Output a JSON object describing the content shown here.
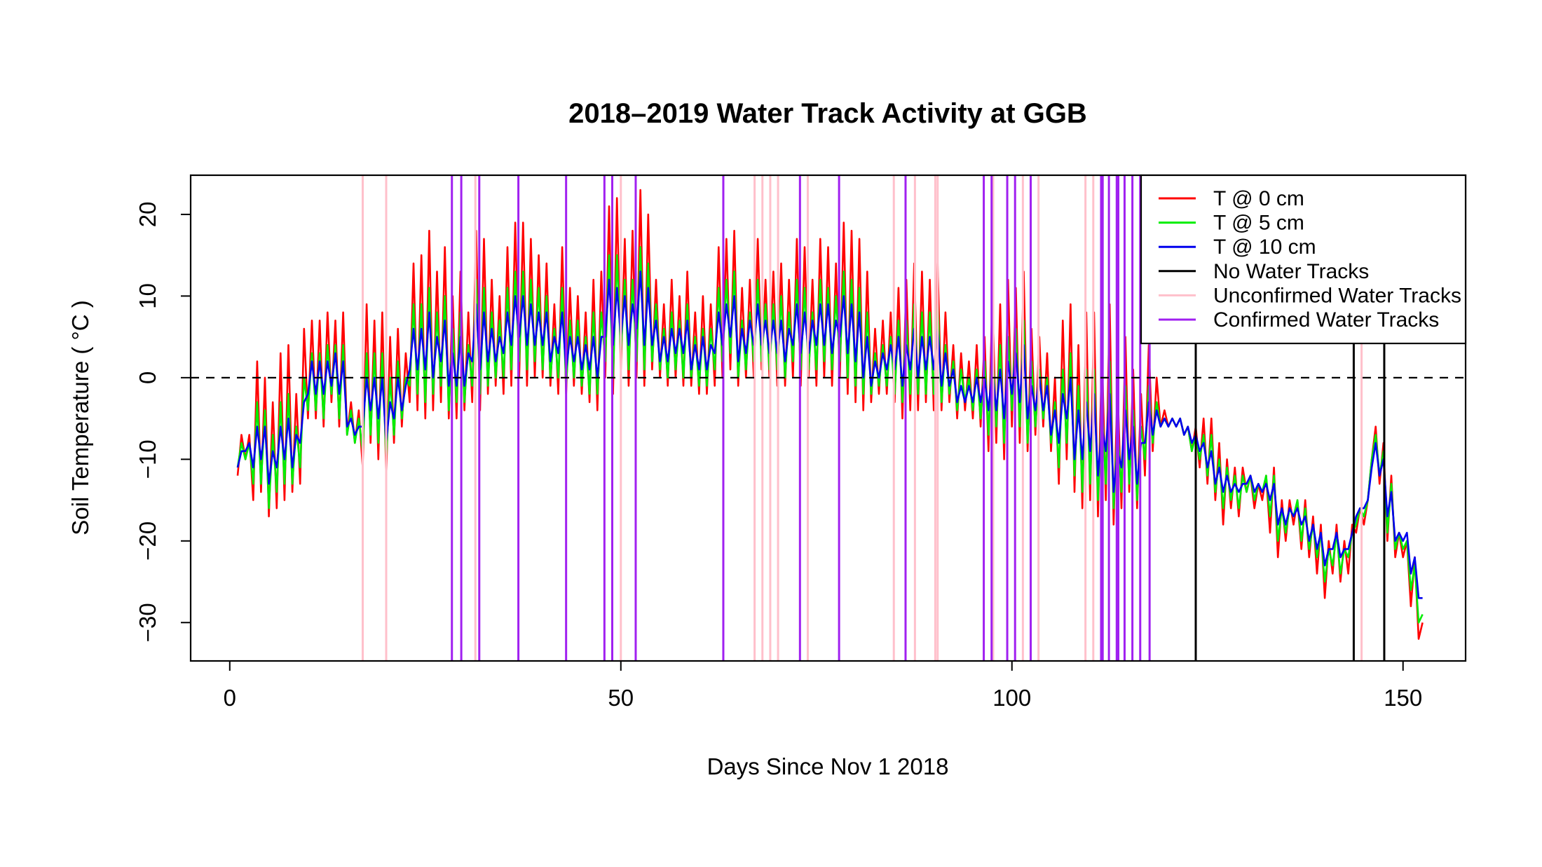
{
  "chart_data": {
    "type": "line",
    "title": "2018–2019 Water Track Activity at GGB",
    "xlabel": "Days Since Nov 1  2018",
    "ylabel": "Soil Temperature ( °C )",
    "xlim": [
      -5,
      158
    ],
    "ylim": [
      -34.7,
      24.8
    ],
    "x_ticks": [
      "0",
      "50",
      "100",
      "150"
    ],
    "y_ticks": [
      "-30",
      "-20",
      "-10",
      "0",
      "10",
      "20"
    ],
    "grid": false,
    "reference_line": {
      "y": 0,
      "style": "dashed",
      "color": "#000000"
    },
    "legend_position": "top-right",
    "legend": [
      {
        "label": "T @ 0 cm",
        "color": "#FF0000"
      },
      {
        "label": "T @ 5 cm",
        "color": "#00EE00"
      },
      {
        "label": "T @ 10 cm",
        "color": "#0000EE"
      },
      {
        "label": "No Water Tracks",
        "color": "#000000"
      },
      {
        "label": "Unconfirmed Water Tracks",
        "color": "#FFC0CB"
      },
      {
        "label": "Confirmed Water Tracks",
        "color": "#A020F0"
      }
    ],
    "days": [
      1,
      2,
      3,
      4,
      5,
      6,
      7,
      8,
      9,
      10,
      11,
      12,
      13,
      14,
      15,
      16,
      17,
      18,
      19,
      20,
      21,
      22,
      23,
      24,
      25,
      26,
      27,
      28,
      29,
      30,
      31,
      32,
      33,
      34,
      35,
      36,
      37,
      38,
      39,
      40,
      41,
      42,
      43,
      44,
      45,
      46,
      47,
      48,
      49,
      50,
      51,
      52,
      53,
      54,
      55,
      56,
      57,
      58,
      59,
      60,
      61,
      62,
      63,
      64,
      65,
      66,
      67,
      68,
      69,
      70,
      71,
      72,
      73,
      74,
      75,
      76,
      77,
      78,
      79,
      80,
      81,
      82,
      83,
      84,
      85,
      86,
      87,
      88,
      89,
      90,
      91,
      92,
      93,
      94,
      95,
      96,
      97,
      98,
      99,
      100,
      101,
      102,
      103,
      104,
      105,
      106,
      107,
      108,
      109,
      110,
      111,
      112,
      113,
      114,
      115,
      116,
      117,
      118,
      119,
      120,
      121,
      122,
      123,
      124,
      125,
      126,
      127,
      128,
      129,
      130,
      131,
      132,
      133,
      134,
      135,
      136,
      137,
      138,
      139,
      140,
      141,
      142,
      143,
      144,
      145,
      146,
      147,
      148,
      149,
      150,
      151,
      152
    ],
    "series": [
      {
        "name": "T @ 0 cm",
        "color": "#FF0000",
        "daily_min": [
          -12,
          -10,
          -15,
          -14,
          -17,
          -16,
          -15,
          -14,
          -13,
          -5,
          -5,
          -6,
          -3,
          -6,
          -7,
          -8,
          -11,
          -8,
          -10,
          -12,
          -8,
          -6,
          -3,
          -4,
          -5,
          -4,
          -3,
          -5,
          -5,
          -4,
          -3,
          -4,
          -2,
          -1,
          -2,
          -1,
          0,
          -1,
          0,
          0,
          -1,
          -2,
          -2,
          -1,
          -2,
          -3,
          -4,
          0,
          -2,
          1,
          -1,
          0,
          -1,
          1,
          0,
          -1,
          0,
          -1,
          -1,
          -2,
          -2,
          -1,
          0,
          1,
          -1,
          0,
          0,
          1,
          0,
          -1,
          -1,
          0,
          -1,
          0,
          -1,
          0,
          -1,
          0,
          -2,
          -3,
          -4,
          -3,
          -2,
          -2,
          -3,
          -5,
          -4,
          -4,
          -3,
          -4,
          -4,
          -3,
          -5,
          -4,
          -5,
          -6,
          -9,
          -8,
          -10,
          -6,
          -8,
          -9,
          -7,
          -6,
          -9,
          -13,
          -10,
          -14,
          -16,
          -15,
          -17,
          -15,
          -18,
          -16,
          -14,
          -16,
          -12,
          -9,
          -6,
          -6,
          -6,
          -7,
          -9,
          -11,
          -13,
          -15,
          -18,
          -16,
          -17,
          -14,
          -16,
          -15,
          -19,
          -22,
          -20,
          -18,
          -21,
          -22,
          -24,
          -27,
          -24,
          -25,
          -24,
          -19,
          -18,
          -10,
          -13,
          -20,
          -22,
          -22,
          -28,
          -32
        ],
        "daily_max": [
          -7,
          -7,
          2,
          0,
          -3,
          3,
          4,
          -2,
          6,
          7,
          7,
          8,
          7,
          8,
          -3,
          -4,
          9,
          7,
          8,
          5,
          6,
          3,
          14,
          15,
          18,
          13,
          16,
          10,
          13,
          8,
          18,
          17,
          12,
          10,
          16,
          19,
          19,
          17,
          15,
          14,
          9,
          16,
          11,
          10,
          8,
          12,
          13,
          21,
          22,
          17,
          18,
          23,
          20,
          12,
          9,
          12,
          10,
          13,
          8,
          10,
          9,
          16,
          17,
          18,
          11,
          12,
          17,
          12,
          13,
          14,
          12,
          17,
          16,
          12,
          17,
          16,
          14,
          19,
          18,
          17,
          13,
          6,
          7,
          8,
          11,
          12,
          14,
          13,
          12,
          14,
          8,
          4,
          3,
          2,
          4,
          5,
          10,
          9,
          12,
          11,
          13,
          6,
          5,
          3,
          0,
          7,
          9,
          4,
          8,
          8,
          3,
          9,
          -1,
          5,
          1,
          -2,
          4,
          0,
          -4,
          -5,
          -5,
          -6,
          -6,
          -5,
          -5,
          -8,
          -10,
          -11,
          -11,
          -12,
          -13,
          -12,
          -11,
          -15,
          -15,
          -15,
          -15,
          -17,
          -18,
          -20,
          -18,
          -20,
          -18,
          -16,
          -15,
          -6,
          -8,
          -12,
          -19,
          -20,
          -22,
          -30
        ]
      },
      {
        "name": "T @ 5 cm",
        "color": "#00EE00",
        "daily_min": [
          -11,
          -10,
          -13,
          -13,
          -16,
          -14,
          -13,
          -13,
          -11,
          -4,
          -4,
          -5,
          -2,
          -5,
          -7,
          -8,
          -9,
          -7,
          -8,
          -10,
          -7,
          -5,
          -1,
          -2,
          -3,
          -2,
          -1,
          -4,
          -3,
          -3,
          -1,
          -2,
          -1,
          0,
          0,
          1,
          2,
          1,
          2,
          1,
          0,
          0,
          -1,
          0,
          -1,
          -2,
          -2,
          2,
          0,
          3,
          1,
          2,
          1,
          2,
          1,
          0,
          1,
          0,
          0,
          -1,
          -1,
          1,
          2,
          3,
          0,
          1,
          2,
          2,
          1,
          1,
          0,
          2,
          1,
          1,
          1,
          2,
          1,
          2,
          0,
          -1,
          -2,
          -2,
          -1,
          -1,
          -2,
          -3,
          -2,
          -2,
          -2,
          -2,
          -3,
          -2,
          -4,
          -3,
          -4,
          -5,
          -7,
          -6,
          -8,
          -4,
          -6,
          -8,
          -6,
          -5,
          -8,
          -11,
          -8,
          -12,
          -14,
          -13,
          -15,
          -13,
          -16,
          -14,
          -13,
          -15,
          -10,
          -8,
          -6,
          -6,
          -6,
          -7,
          -9,
          -10,
          -12,
          -14,
          -16,
          -15,
          -16,
          -14,
          -15,
          -14,
          -17,
          -20,
          -19,
          -17,
          -20,
          -21,
          -22,
          -25,
          -23,
          -24,
          -22,
          -18,
          -17,
          -10,
          -12,
          -19,
          -21,
          -21,
          -26,
          -30
        ],
        "daily_max": [
          -8,
          -8,
          -3,
          -4,
          -7,
          -3,
          -2,
          -6,
          0,
          3,
          3,
          4,
          4,
          4,
          -4,
          -5,
          3,
          3,
          3,
          0,
          2,
          0,
          9,
          9,
          11,
          8,
          10,
          6,
          8,
          4,
          12,
          11,
          8,
          7,
          11,
          13,
          13,
          12,
          11,
          10,
          6,
          11,
          7,
          7,
          5,
          8,
          8,
          15,
          15,
          12,
          12,
          16,
          14,
          9,
          6,
          8,
          7,
          9,
          5,
          6,
          6,
          11,
          12,
          13,
          7,
          8,
          12,
          9,
          9,
          10,
          8,
          12,
          11,
          8,
          12,
          11,
          10,
          13,
          12,
          11,
          8,
          3,
          4,
          5,
          7,
          7,
          9,
          8,
          8,
          9,
          4,
          2,
          1,
          0,
          1,
          2,
          4,
          4,
          5,
          6,
          7,
          2,
          1,
          0,
          -3,
          1,
          3,
          -1,
          1,
          1,
          -3,
          2,
          -6,
          -1,
          -4,
          -6,
          -1,
          -3,
          -5,
          -5,
          -5,
          -6,
          -7,
          -7,
          -7,
          -10,
          -11,
          -12,
          -12,
          -12,
          -13,
          -12,
          -12,
          -16,
          -16,
          -15,
          -16,
          -18,
          -19,
          -21,
          -19,
          -21,
          -19,
          -16,
          -15,
          -7,
          -9,
          -13,
          -19,
          -20,
          -23,
          -29
        ]
      },
      {
        "name": "T @ 10 cm",
        "color": "#0000EE",
        "daily_min": [
          -11,
          -9,
          -11,
          -10,
          -13,
          -11,
          -10,
          -11,
          -8,
          -2,
          -2,
          -2,
          -1,
          -2,
          -6,
          -7,
          -6,
          -4,
          -5,
          -8,
          -5,
          -4,
          1,
          1,
          1,
          0,
          2,
          -1,
          -1,
          -1,
          2,
          1,
          2,
          2,
          3,
          4,
          5,
          4,
          4,
          4,
          2,
          3,
          1,
          2,
          1,
          1,
          0,
          5,
          4,
          5,
          4,
          6,
          4,
          4,
          2,
          2,
          3,
          3,
          1,
          1,
          1,
          3,
          4,
          5,
          2,
          3,
          4,
          4,
          3,
          3,
          2,
          4,
          3,
          3,
          4,
          4,
          3,
          5,
          3,
          2,
          0,
          -1,
          0,
          1,
          1,
          -1,
          1,
          0,
          1,
          1,
          -1,
          -1,
          -3,
          -3,
          -3,
          -3,
          -4,
          -4,
          -5,
          -2,
          -3,
          -5,
          -4,
          -4,
          -7,
          -8,
          -5,
          -10,
          -10,
          -9,
          -12,
          -9,
          -14,
          -11,
          -10,
          -13,
          -8,
          -7,
          -6,
          -6,
          -6,
          -7,
          -8,
          -9,
          -11,
          -13,
          -14,
          -14,
          -14,
          -13,
          -14,
          -14,
          -15,
          -18,
          -18,
          -17,
          -18,
          -20,
          -21,
          -23,
          -21,
          -22,
          -21,
          -17,
          -16,
          -11,
          -12,
          -17,
          -20,
          -20,
          -24,
          -27
        ],
        "daily_max": [
          -9,
          -8,
          -6,
          -6,
          -9,
          -6,
          -5,
          -7,
          -3,
          2,
          2,
          2,
          3,
          2,
          -5,
          -6,
          0,
          0,
          0,
          -3,
          0,
          -1,
          6,
          6,
          8,
          5,
          7,
          3,
          5,
          3,
          9,
          8,
          6,
          5,
          8,
          10,
          10,
          9,
          8,
          8,
          5,
          8,
          5,
          5,
          4,
          5,
          5,
          12,
          11,
          10,
          9,
          13,
          11,
          7,
          5,
          6,
          6,
          7,
          4,
          5,
          4,
          8,
          9,
          10,
          6,
          7,
          9,
          7,
          7,
          7,
          6,
          9,
          8,
          7,
          9,
          9,
          7,
          10,
          9,
          8,
          5,
          2,
          3,
          4,
          5,
          4,
          6,
          5,
          5,
          6,
          3,
          1,
          -1,
          -1,
          0,
          0,
          1,
          1,
          2,
          3,
          4,
          -1,
          0,
          -1,
          -4,
          -2,
          0,
          -4,
          -3,
          -2,
          -6,
          -2,
          -9,
          -4,
          -6,
          -8,
          -3,
          -4,
          -5,
          -5,
          -5,
          -6,
          -7,
          -8,
          -9,
          -11,
          -12,
          -13,
          -13,
          -12,
          -13,
          -13,
          -13,
          -16,
          -16,
          -16,
          -17,
          -18,
          -19,
          -21,
          -19,
          -21,
          -19,
          -16,
          -15,
          -8,
          -10,
          -14,
          -19,
          -19,
          -22,
          -27
        ]
      }
    ],
    "event_lines": {
      "no_water_tracks": [
        123.5,
        143.7,
        147.6
      ],
      "unconfirmed_water_tracks": [
        17,
        20,
        31.4,
        50,
        67.1,
        68.1,
        69.1,
        70.1,
        73.9,
        84.9,
        87.6,
        90.2,
        90.5,
        97.6,
        101.4,
        103.4,
        109.4,
        110.4,
        144.7
      ],
      "confirmed_water_tracks": [
        28.4,
        29.6,
        31.9,
        36.9,
        43,
        47.9,
        48.9,
        51.9,
        63.1,
        72.9,
        77.9,
        86.4,
        96.4,
        97.4,
        99.4,
        100.4,
        102.4,
        111.4,
        111.6,
        112.4,
        113.4,
        113.6,
        114.4,
        115.4,
        116.4,
        117.6
      ]
    }
  }
}
